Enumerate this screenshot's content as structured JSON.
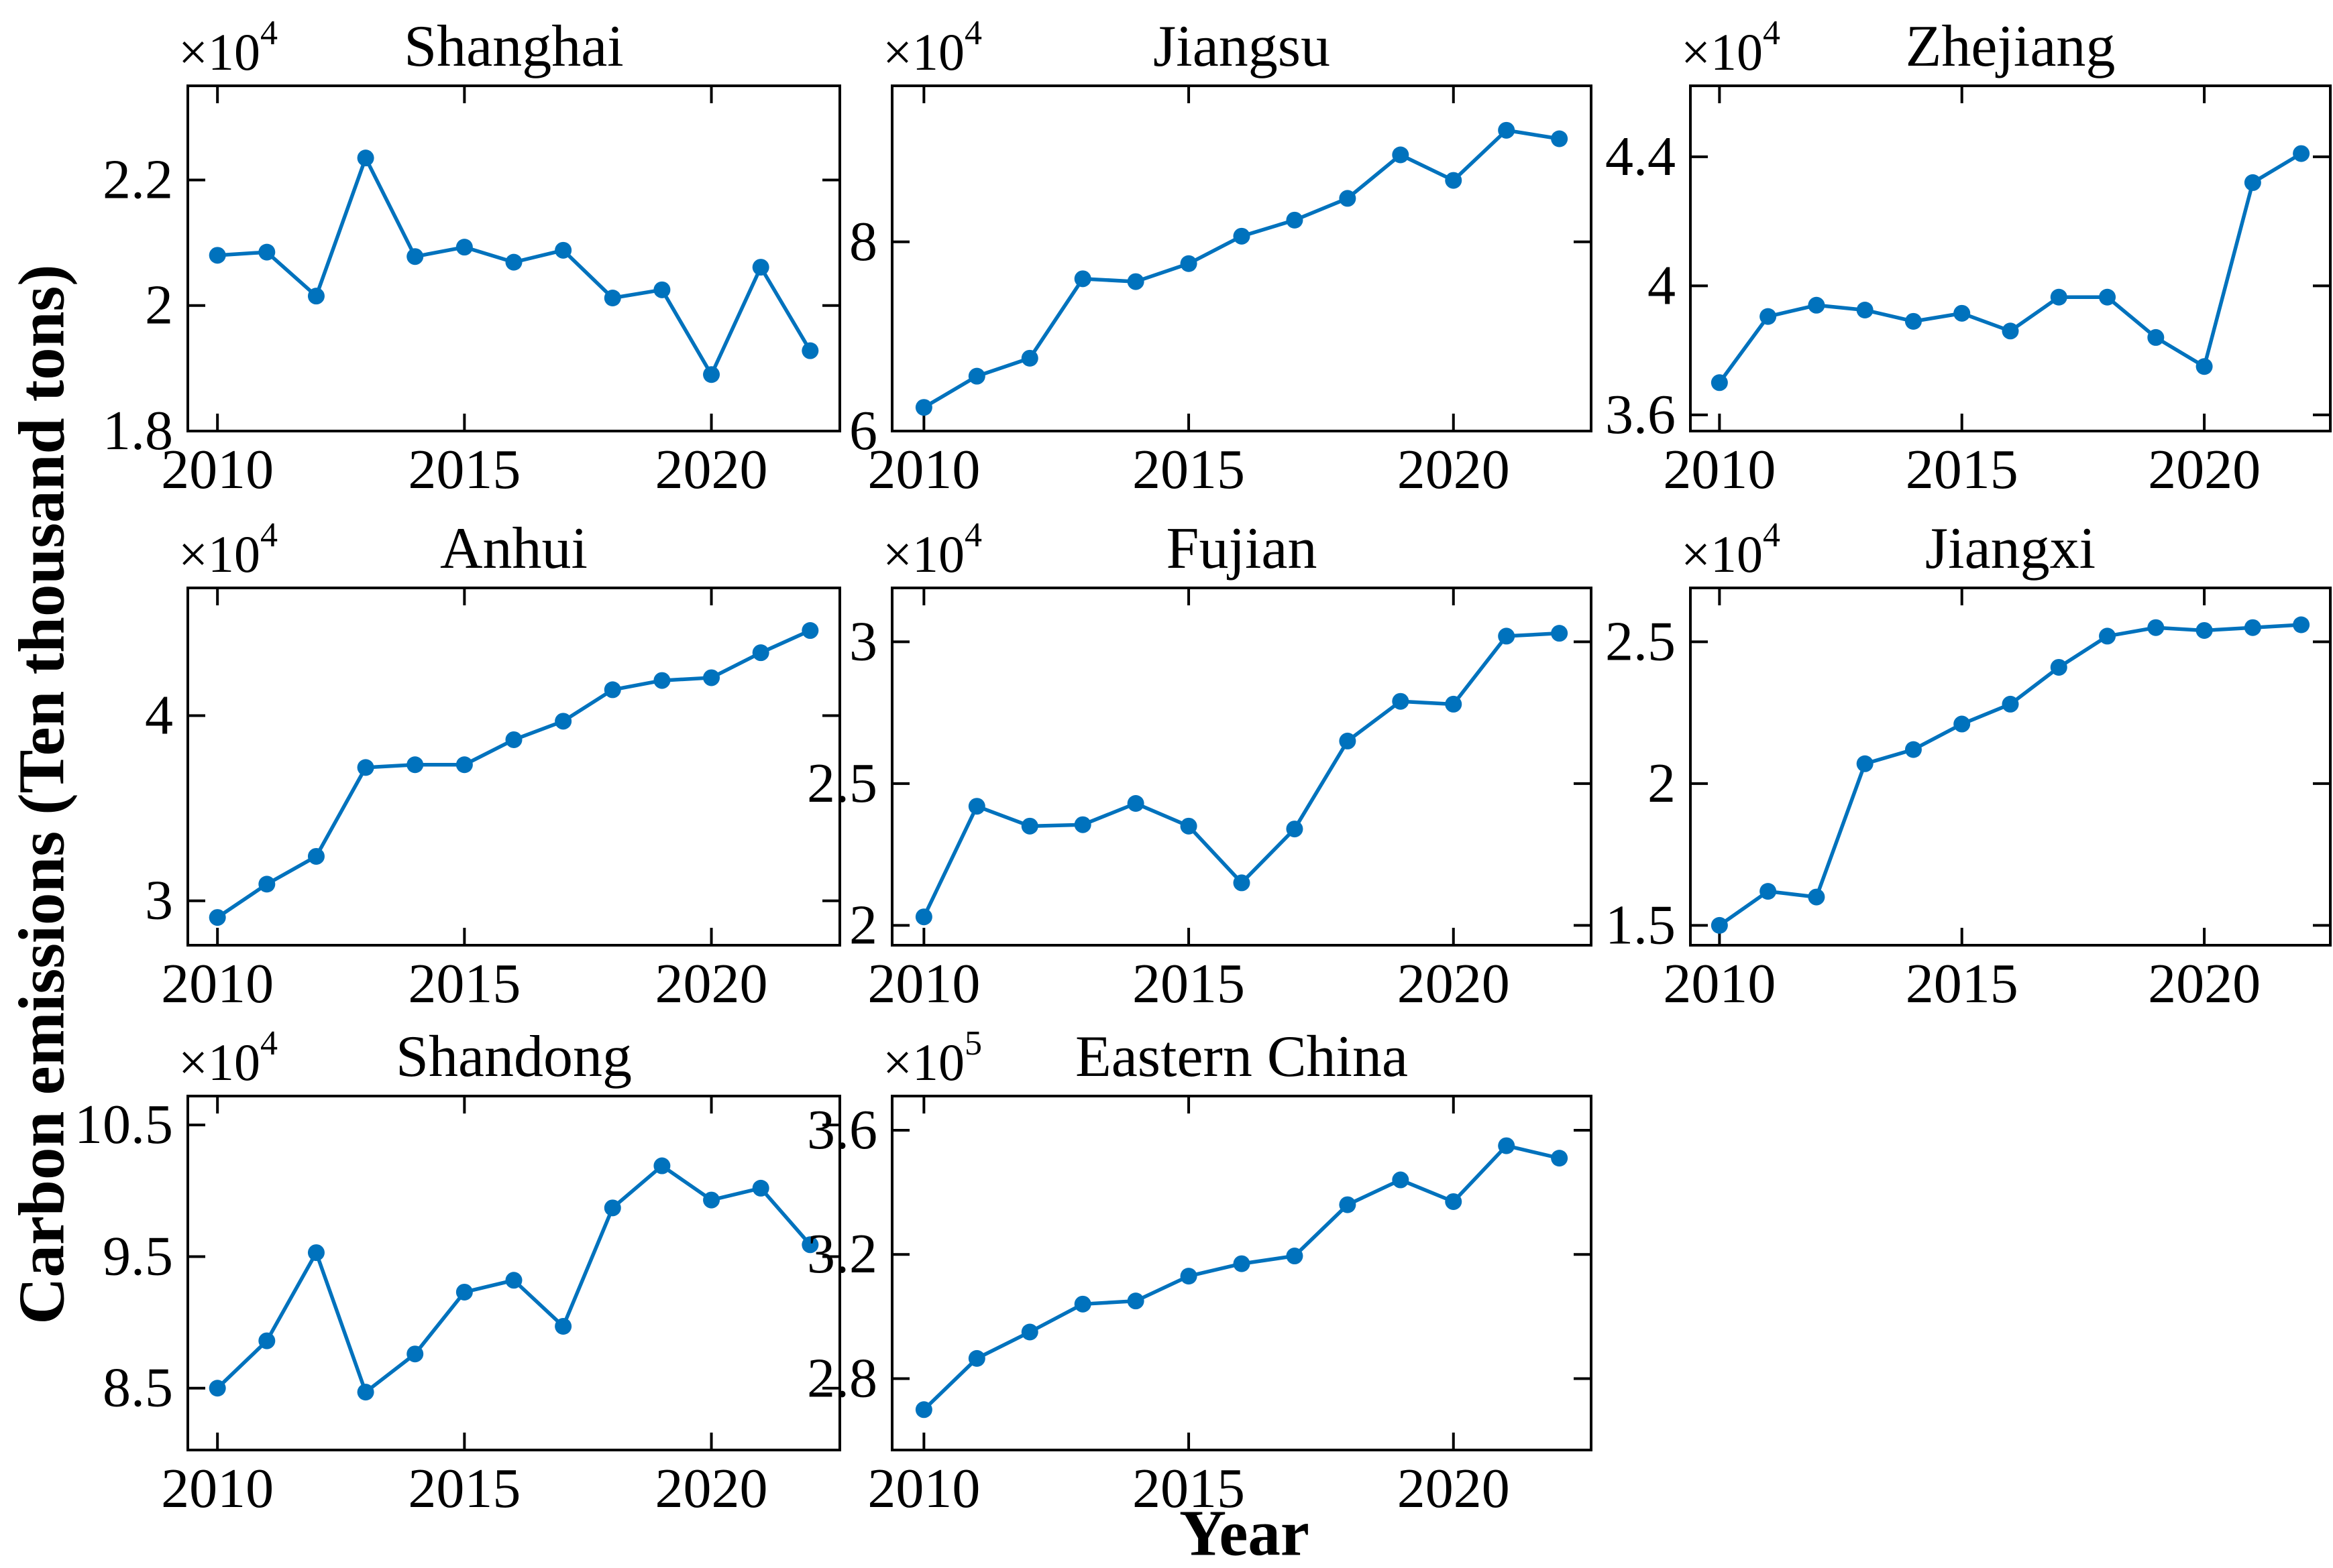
{
  "figure": {
    "ylabel": "Carbon emissions (Ten thousand tons)",
    "xlabel": "Year",
    "background_color": "#ffffff",
    "line_color": "#0072BD",
    "axis_color": "#000000"
  },
  "chart_data": [
    {
      "type": "line",
      "title": "Shanghai",
      "exponent_label": "×10",
      "exponent_power": "4",
      "grid_position": [
        0,
        0
      ],
      "x": [
        2010,
        2011,
        2012,
        2013,
        2014,
        2015,
        2016,
        2017,
        2018,
        2019,
        2020,
        2021,
        2022
      ],
      "values": [
        2.08,
        2.085,
        2.015,
        2.235,
        2.078,
        2.093,
        2.069,
        2.088,
        2.012,
        2.025,
        1.89,
        2.061,
        1.928
      ],
      "xlim": [
        2009.4,
        2022.6
      ],
      "ylim": [
        1.8,
        2.35
      ],
      "xticks": [
        2010,
        2015,
        2020
      ],
      "xtick_labels": [
        "2010",
        "2015",
        "2020"
      ],
      "yticks": [
        1.8,
        2.0,
        2.2
      ],
      "ytick_labels": [
        "1.8",
        "2",
        "2.2"
      ],
      "grid": false
    },
    {
      "type": "line",
      "title": "Jiangsu",
      "exponent_label": "×10",
      "exponent_power": "4",
      "grid_position": [
        0,
        1
      ],
      "x": [
        2010,
        2011,
        2012,
        2013,
        2014,
        2015,
        2016,
        2017,
        2018,
        2019,
        2020,
        2021,
        2022
      ],
      "values": [
        6.25,
        6.58,
        6.77,
        7.61,
        7.58,
        7.77,
        8.06,
        8.23,
        8.46,
        8.92,
        8.65,
        9.18,
        9.09
      ],
      "xlim": [
        2009.4,
        2022.6
      ],
      "ylim": [
        6.0,
        9.65
      ],
      "xticks": [
        2010,
        2015,
        2020
      ],
      "xtick_labels": [
        "2010",
        "2015",
        "2020"
      ],
      "yticks": [
        6.0,
        8.0
      ],
      "ytick_labels": [
        "6",
        "8"
      ],
      "grid": false
    },
    {
      "type": "line",
      "title": "Zhejiang",
      "exponent_label": "×10",
      "exponent_power": "4",
      "grid_position": [
        0,
        2
      ],
      "x": [
        2010,
        2011,
        2012,
        2013,
        2014,
        2015,
        2016,
        2017,
        2018,
        2019,
        2020,
        2021,
        2022
      ],
      "values": [
        3.7,
        3.905,
        3.94,
        3.925,
        3.89,
        3.915,
        3.86,
        3.965,
        3.965,
        3.84,
        3.75,
        4.32,
        4.41
      ],
      "xlim": [
        2009.4,
        2022.6
      ],
      "ylim": [
        3.55,
        4.62
      ],
      "xticks": [
        2010,
        2015,
        2020
      ],
      "xtick_labels": [
        "2010",
        "2015",
        "2020"
      ],
      "yticks": [
        3.6,
        4.0,
        4.4
      ],
      "ytick_labels": [
        "3.6",
        "4",
        "4.4"
      ],
      "grid": false
    },
    {
      "type": "line",
      "title": "Anhui",
      "exponent_label": "×10",
      "exponent_power": "4",
      "grid_position": [
        1,
        0
      ],
      "x": [
        2010,
        2011,
        2012,
        2013,
        2014,
        2015,
        2016,
        2017,
        2018,
        2019,
        2020,
        2021,
        2022
      ],
      "values": [
        2.91,
        3.09,
        3.24,
        3.72,
        3.735,
        3.735,
        3.87,
        3.97,
        4.14,
        4.19,
        4.205,
        4.34,
        4.46
      ],
      "xlim": [
        2009.4,
        2022.6
      ],
      "ylim": [
        2.76,
        4.69
      ],
      "xticks": [
        2010,
        2015,
        2020
      ],
      "xtick_labels": [
        "2010",
        "2015",
        "2020"
      ],
      "yticks": [
        3.0,
        4.0
      ],
      "ytick_labels": [
        "3",
        "4"
      ],
      "grid": false
    },
    {
      "type": "line",
      "title": "Fujian",
      "exponent_label": "×10",
      "exponent_power": "4",
      "grid_position": [
        1,
        1
      ],
      "x": [
        2010,
        2011,
        2012,
        2013,
        2014,
        2015,
        2016,
        2017,
        2018,
        2019,
        2020,
        2021,
        2022
      ],
      "values": [
        2.03,
        2.42,
        2.35,
        2.355,
        2.43,
        2.35,
        2.15,
        2.34,
        2.65,
        2.79,
        2.78,
        3.02,
        3.03
      ],
      "xlim": [
        2009.4,
        2022.6
      ],
      "ylim": [
        1.93,
        3.19
      ],
      "xticks": [
        2010,
        2015,
        2020
      ],
      "xtick_labels": [
        "2010",
        "2015",
        "2020"
      ],
      "yticks": [
        2.0,
        2.5,
        3.0
      ],
      "ytick_labels": [
        "2",
        "2.5",
        "3"
      ],
      "grid": false
    },
    {
      "type": "line",
      "title": "Jiangxi",
      "exponent_label": "×10",
      "exponent_power": "4",
      "grid_position": [
        1,
        2
      ],
      "x": [
        2010,
        2011,
        2012,
        2013,
        2014,
        2015,
        2016,
        2017,
        2018,
        2019,
        2020,
        2021,
        2022
      ],
      "values": [
        1.5,
        1.62,
        1.6,
        2.07,
        2.12,
        2.21,
        2.28,
        2.41,
        2.52,
        2.55,
        2.54,
        2.55,
        2.56
      ],
      "xlim": [
        2009.4,
        2022.6
      ],
      "ylim": [
        1.43,
        2.69
      ],
      "xticks": [
        2010,
        2015,
        2020
      ],
      "xtick_labels": [
        "2010",
        "2015",
        "2020"
      ],
      "yticks": [
        1.5,
        2.0,
        2.5
      ],
      "ytick_labels": [
        "1.5",
        "2",
        "2.5"
      ],
      "grid": false
    },
    {
      "type": "line",
      "title": "Shandong",
      "exponent_label": "×10",
      "exponent_power": "4",
      "grid_position": [
        2,
        0
      ],
      "x": [
        2010,
        2011,
        2012,
        2013,
        2014,
        2015,
        2016,
        2017,
        2018,
        2019,
        2020,
        2021,
        2022
      ],
      "values": [
        8.5,
        8.86,
        9.53,
        8.47,
        8.76,
        9.23,
        9.32,
        8.97,
        9.87,
        10.19,
        9.93,
        10.02,
        9.59
      ],
      "xlim": [
        2009.4,
        2022.6
      ],
      "ylim": [
        8.03,
        10.72
      ],
      "xticks": [
        2010,
        2015,
        2020
      ],
      "xtick_labels": [
        "2010",
        "2015",
        "2020"
      ],
      "yticks": [
        8.5,
        9.5,
        10.5
      ],
      "ytick_labels": [
        "8.5",
        "9.5",
        "10.5"
      ],
      "grid": false
    },
    {
      "type": "line",
      "title": "Eastern China",
      "exponent_label": "×10",
      "exponent_power": "5",
      "grid_position": [
        2,
        1
      ],
      "x": [
        2010,
        2011,
        2012,
        2013,
        2014,
        2015,
        2016,
        2017,
        2018,
        2019,
        2020,
        2021,
        2022
      ],
      "values": [
        2.7,
        2.865,
        2.95,
        3.04,
        3.05,
        3.13,
        3.17,
        3.195,
        3.36,
        3.44,
        3.37,
        3.55,
        3.51
      ],
      "xlim": [
        2009.4,
        2022.6
      ],
      "ylim": [
        2.57,
        3.71
      ],
      "xticks": [
        2010,
        2015,
        2020
      ],
      "xtick_labels": [
        "2010",
        "2015",
        "2020"
      ],
      "yticks": [
        2.8,
        3.2,
        3.6
      ],
      "ytick_labels": [
        "2.8",
        "3.2",
        "3.6"
      ],
      "grid": false
    }
  ]
}
